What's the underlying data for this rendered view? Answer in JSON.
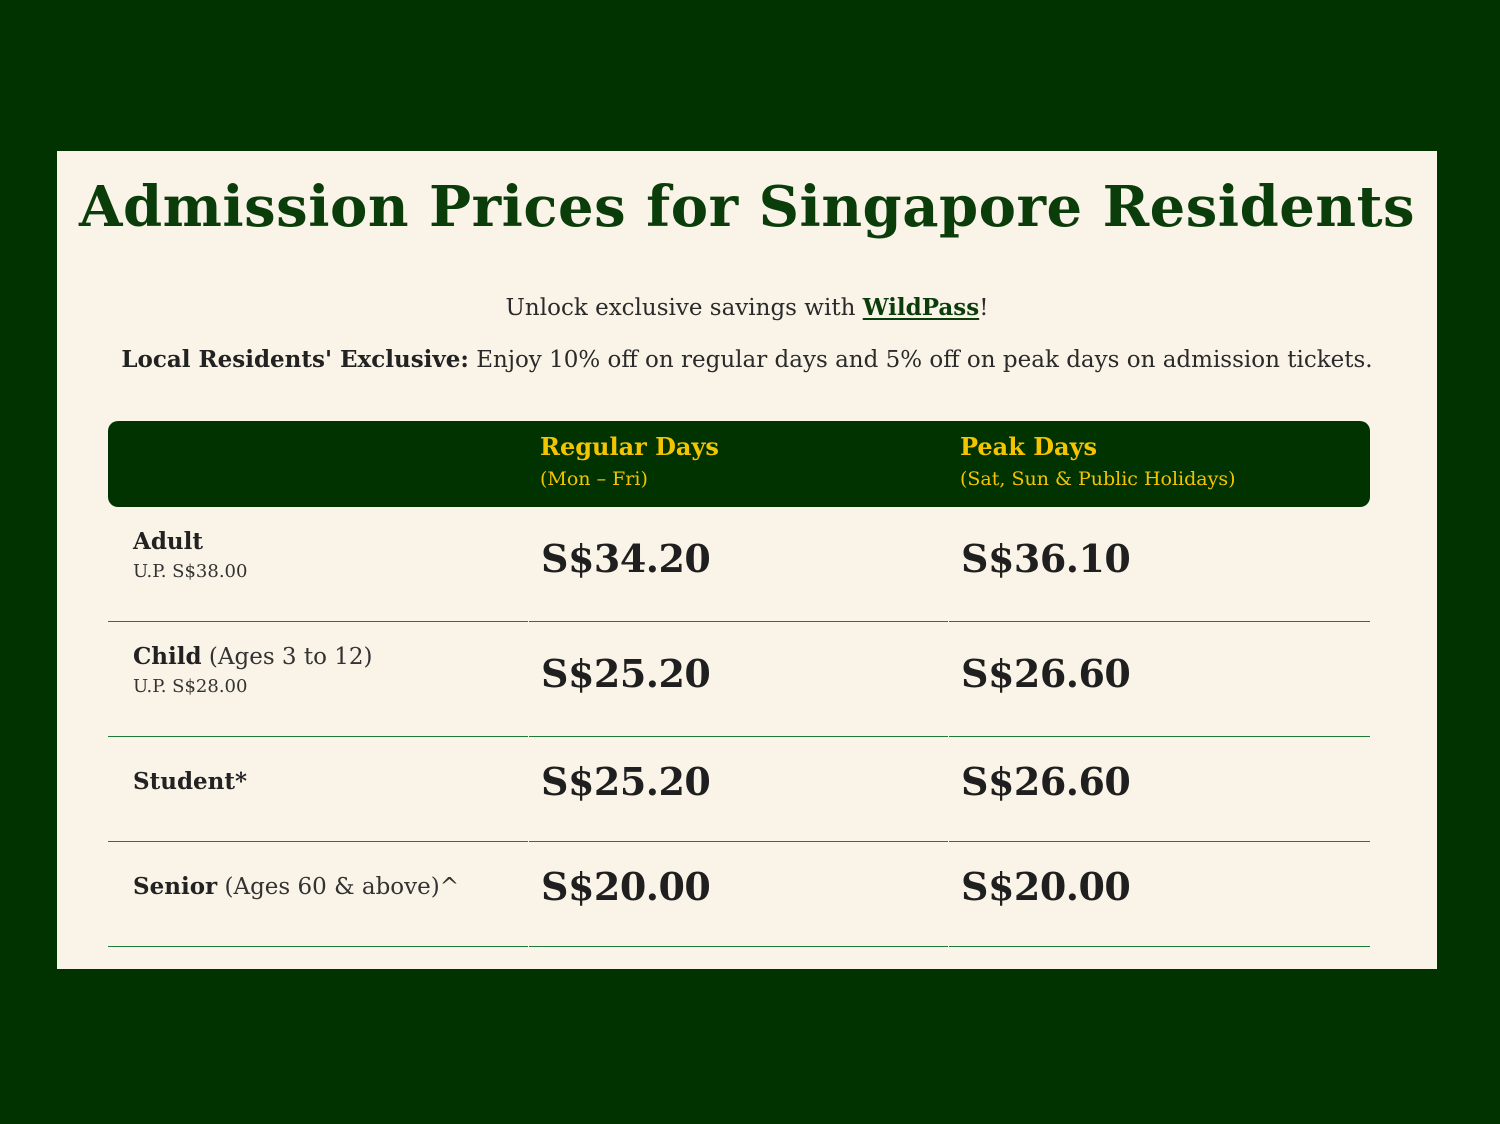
{
  "title": "Admission Prices for Singapore Residents",
  "promo": {
    "unlock_prefix": "Unlock exclusive savings with ",
    "wildpass_link": "WildPass",
    "unlock_suffix": "!",
    "exclusive_label": "Local Residents' Exclusive:",
    "exclusive_text": " Enjoy 10% off on regular days and 5% off on peak days on admission tickets."
  },
  "table": {
    "headers": {
      "regular_title": "Regular Days",
      "regular_sub": "(Mon – Fri)",
      "peak_title": "Peak Days",
      "peak_sub": "(Sat, Sun & Public Holidays)"
    },
    "rows": [
      {
        "name": "Adult",
        "qualifier": "",
        "usual_price": "U.P. S$38.00",
        "regular": "S$34.20",
        "peak": "S$36.10"
      },
      {
        "name": "Child",
        "qualifier": " (Ages 3 to 12)",
        "usual_price": "U.P. S$28.00",
        "regular": "S$25.20",
        "peak": "S$26.60"
      },
      {
        "name": "Student*",
        "qualifier": "",
        "usual_price": "",
        "regular": "S$25.20",
        "peak": "S$26.60"
      },
      {
        "name": "Senior",
        "qualifier": " (Ages 60 & above)^",
        "usual_price": "",
        "regular": "S$20.00",
        "peak": "S$20.00"
      }
    ]
  },
  "colors": {
    "page_background": "#003300",
    "card_background": "#faf4e8",
    "title_green": "#0b3d0b",
    "header_background": "#003300",
    "header_text": "#f5c400",
    "row_divider": "#1f7a3a"
  }
}
